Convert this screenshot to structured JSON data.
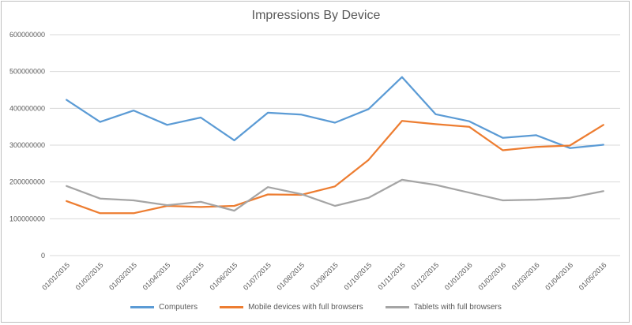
{
  "chart_data": {
    "type": "line",
    "title": "Impressions By Device",
    "xlabel": "",
    "ylabel": "",
    "categories": [
      "01/01/2015",
      "01/02/2015",
      "01/03/2015",
      "01/04/2015",
      "01/05/2015",
      "01/06/2015",
      "01/07/2015",
      "01/08/2015",
      "01/09/2015",
      "01/10/2015",
      "01/11/2015",
      "01/12/2015",
      "01/01/2016",
      "01/02/2016",
      "01/03/2016",
      "01/04/2016",
      "01/05/2016"
    ],
    "y_ticks": [
      "0",
      "100000000",
      "200000000",
      "300000000",
      "400000000",
      "500000000",
      "600000000"
    ],
    "ylim": [
      0,
      600000000
    ],
    "grid": true,
    "legend_position": "bottom",
    "series": [
      {
        "name": "Computers",
        "color": "#5b9bd5",
        "values": [
          423000000,
          363000000,
          394000000,
          355000000,
          375000000,
          313000000,
          388000000,
          383000000,
          361000000,
          398000000,
          485000000,
          384000000,
          365000000,
          320000000,
          327000000,
          292000000,
          301000000
        ]
      },
      {
        "name": "Mobile devices with full browsers",
        "color": "#ed7d31",
        "values": [
          148000000,
          115000000,
          115000000,
          135000000,
          132000000,
          135000000,
          166000000,
          165000000,
          188000000,
          260000000,
          366000000,
          357000000,
          350000000,
          286000000,
          295000000,
          299000000,
          355000000
        ]
      },
      {
        "name": "Tablets with full browsers",
        "color": "#a5a5a5",
        "values": [
          189000000,
          155000000,
          150000000,
          137000000,
          146000000,
          122000000,
          186000000,
          167000000,
          135000000,
          157000000,
          206000000,
          192000000,
          171000000,
          150000000,
          152000000,
          157000000,
          175000000
        ]
      }
    ]
  }
}
